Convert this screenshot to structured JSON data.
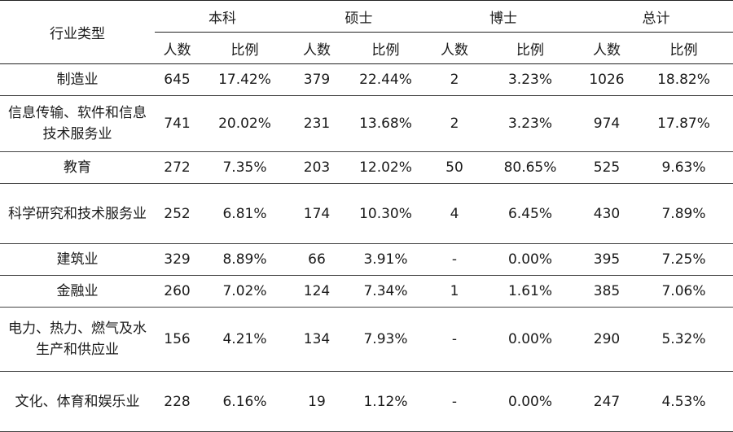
{
  "header": {
    "industry": "行业类型",
    "groups": [
      "本科",
      "硕士",
      "博士",
      "总计"
    ],
    "sub": [
      "人数",
      "比例",
      "人数",
      "比例",
      "人数",
      "比例",
      "人数",
      "比例"
    ]
  },
  "rows": [
    {
      "industry": "制造业",
      "cells": [
        "645",
        "17.42%",
        "379",
        "22.44%",
        "2",
        "3.23%",
        "1026",
        "18.82%"
      ]
    },
    {
      "industry": "信息传输、软件和信息技术服务业",
      "cells": [
        "741",
        "20.02%",
        "231",
        "13.68%",
        "2",
        "3.23%",
        "974",
        "17.87%"
      ]
    },
    {
      "industry": "教育",
      "cells": [
        "272",
        "7.35%",
        "203",
        "12.02%",
        "50",
        "80.65%",
        "525",
        "9.63%"
      ]
    },
    {
      "industry": "科学研究和技术服务业",
      "cells": [
        "252",
        "6.81%",
        "174",
        "10.30%",
        "4",
        "6.45%",
        "430",
        "7.89%"
      ]
    },
    {
      "industry": "建筑业",
      "cells": [
        "329",
        "8.89%",
        "66",
        "3.91%",
        "-",
        "0.00%",
        "395",
        "7.25%"
      ]
    },
    {
      "industry": "金融业",
      "cells": [
        "260",
        "7.02%",
        "124",
        "7.34%",
        "1",
        "1.61%",
        "385",
        "7.06%"
      ]
    },
    {
      "industry": "电力、热力、燃气及水生产和供应业",
      "cells": [
        "156",
        "4.21%",
        "134",
        "7.93%",
        "-",
        "0.00%",
        "290",
        "5.32%"
      ]
    },
    {
      "industry": "文化、体育和娱乐业",
      "cells": [
        "228",
        "6.16%",
        "19",
        "1.12%",
        "-",
        "0.00%",
        "247",
        "4.53%"
      ]
    }
  ]
}
